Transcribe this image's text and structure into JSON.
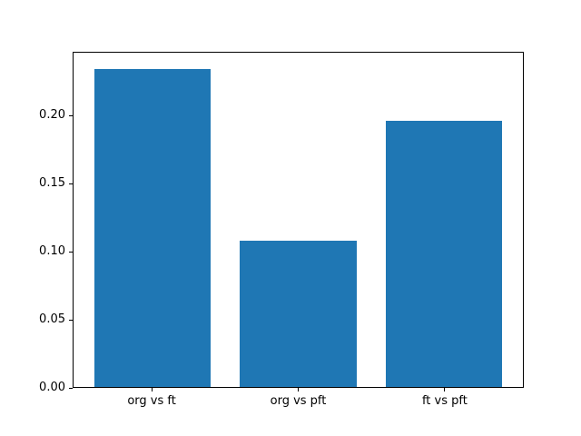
{
  "chart_data": {
    "type": "bar",
    "title": "",
    "xlabel": "",
    "ylabel": "",
    "categories": [
      "org vs ft",
      "org vs pft",
      "ft vs pft"
    ],
    "values": [
      0.235,
      0.108,
      0.197
    ],
    "ylim": [
      0,
      0.247
    ],
    "xlim": [
      -0.54,
      2.54
    ],
    "yticks": [
      0,
      0.05,
      0.1,
      0.15,
      0.2
    ],
    "ytick_labels": [
      "0.00",
      "0.05",
      "0.10",
      "0.15",
      "0.20"
    ],
    "bar_color": "#1f77b4",
    "bar_width_fraction": 0.8,
    "grid": false,
    "legend_position": "none"
  }
}
